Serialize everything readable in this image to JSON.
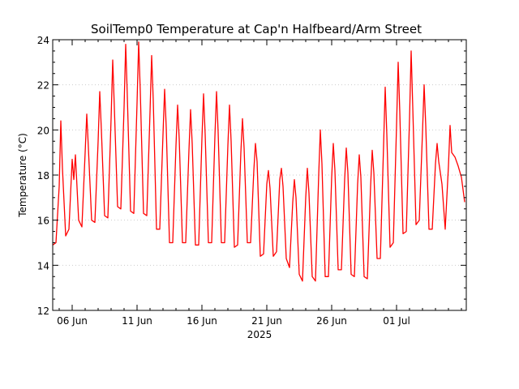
{
  "chart_data": {
    "type": "line",
    "title": "SoilTemp0 Temperature at Cap'n Halfbeard/Arm Street",
    "ylabel": "Temperature (°C)",
    "xlabel": "2025",
    "x_tick_labels": [
      "06 Jun",
      "11 Jun",
      "16 Jun",
      "21 Jun",
      "26 Jun",
      "01 Jul"
    ],
    "x_tick_dates": [
      "2025-06-06",
      "2025-06-11",
      "2025-06-16",
      "2025-06-21",
      "2025-06-26",
      "2025-07-01"
    ],
    "xlim": [
      "2025-06-04T12:00",
      "2025-07-06T09:00"
    ],
    "ylim": [
      12,
      24
    ],
    "y_ticks": [
      12,
      14,
      16,
      18,
      20,
      22,
      24
    ],
    "grid": "horizontal dotted",
    "series": [
      {
        "color": "#ff0000",
        "points": [
          [
            "2025-06-04T12:00",
            14.9
          ],
          [
            "2025-06-04T18:00",
            15.0
          ],
          [
            "2025-06-05T00:00",
            17.5
          ],
          [
            "2025-06-05T03:00",
            20.4
          ],
          [
            "2025-06-05T06:00",
            18.3
          ],
          [
            "2025-06-05T12:00",
            15.3
          ],
          [
            "2025-06-05T18:00",
            15.6
          ],
          [
            "2025-06-06T00:00",
            18.7
          ],
          [
            "2025-06-06T03:00",
            17.8
          ],
          [
            "2025-06-06T06:00",
            18.9
          ],
          [
            "2025-06-06T12:00",
            16.0
          ],
          [
            "2025-06-06T18:00",
            15.7
          ],
          [
            "2025-06-07T00:00",
            19.0
          ],
          [
            "2025-06-07T03:00",
            20.7
          ],
          [
            "2025-06-07T06:00",
            19.2
          ],
          [
            "2025-06-07T12:00",
            16.0
          ],
          [
            "2025-06-07T18:00",
            15.9
          ],
          [
            "2025-06-08T00:00",
            19.5
          ],
          [
            "2025-06-08T03:00",
            21.7
          ],
          [
            "2025-06-08T06:00",
            20.0
          ],
          [
            "2025-06-08T12:00",
            16.2
          ],
          [
            "2025-06-08T18:00",
            16.1
          ],
          [
            "2025-06-09T00:00",
            20.5
          ],
          [
            "2025-06-09T03:00",
            23.1
          ],
          [
            "2025-06-09T06:00",
            21.0
          ],
          [
            "2025-06-09T12:00",
            16.6
          ],
          [
            "2025-06-09T18:00",
            16.5
          ],
          [
            "2025-06-10T00:00",
            21.0
          ],
          [
            "2025-06-10T03:00",
            23.8
          ],
          [
            "2025-06-10T06:00",
            21.5
          ],
          [
            "2025-06-10T12:00",
            16.4
          ],
          [
            "2025-06-10T18:00",
            16.3
          ],
          [
            "2025-06-11T00:00",
            21.2
          ],
          [
            "2025-06-11T03:00",
            23.9
          ],
          [
            "2025-06-11T06:00",
            21.7
          ],
          [
            "2025-06-11T12:00",
            16.3
          ],
          [
            "2025-06-11T18:00",
            16.2
          ],
          [
            "2025-06-12T00:00",
            20.8
          ],
          [
            "2025-06-12T03:00",
            23.3
          ],
          [
            "2025-06-12T06:00",
            21.3
          ],
          [
            "2025-06-12T12:00",
            15.6
          ],
          [
            "2025-06-12T18:00",
            15.6
          ],
          [
            "2025-06-13T00:00",
            19.8
          ],
          [
            "2025-06-13T03:00",
            21.8
          ],
          [
            "2025-06-13T06:00",
            20.1
          ],
          [
            "2025-06-13T12:00",
            15.0
          ],
          [
            "2025-06-13T18:00",
            15.0
          ],
          [
            "2025-06-14T00:00",
            19.3
          ],
          [
            "2025-06-14T03:00",
            21.1
          ],
          [
            "2025-06-14T06:00",
            19.6
          ],
          [
            "2025-06-14T12:00",
            15.0
          ],
          [
            "2025-06-14T18:00",
            15.0
          ],
          [
            "2025-06-15T00:00",
            19.1
          ],
          [
            "2025-06-15T03:00",
            20.9
          ],
          [
            "2025-06-15T06:00",
            19.4
          ],
          [
            "2025-06-15T12:00",
            14.9
          ],
          [
            "2025-06-15T18:00",
            14.9
          ],
          [
            "2025-06-16T00:00",
            19.6
          ],
          [
            "2025-06-16T03:00",
            21.6
          ],
          [
            "2025-06-16T06:00",
            19.8
          ],
          [
            "2025-06-16T12:00",
            15.0
          ],
          [
            "2025-06-16T18:00",
            15.0
          ],
          [
            "2025-06-17T00:00",
            19.7
          ],
          [
            "2025-06-17T03:00",
            21.7
          ],
          [
            "2025-06-17T06:00",
            19.9
          ],
          [
            "2025-06-17T12:00",
            15.0
          ],
          [
            "2025-06-17T18:00",
            15.0
          ],
          [
            "2025-06-18T00:00",
            19.3
          ],
          [
            "2025-06-18T03:00",
            21.1
          ],
          [
            "2025-06-18T06:00",
            19.5
          ],
          [
            "2025-06-18T12:00",
            14.8
          ],
          [
            "2025-06-18T18:00",
            14.9
          ],
          [
            "2025-06-19T00:00",
            19.0
          ],
          [
            "2025-06-19T03:00",
            20.5
          ],
          [
            "2025-06-19T06:00",
            19.2
          ],
          [
            "2025-06-19T12:00",
            15.0
          ],
          [
            "2025-06-19T18:00",
            15.0
          ],
          [
            "2025-06-20T00:00",
            18.2
          ],
          [
            "2025-06-20T03:00",
            19.4
          ],
          [
            "2025-06-20T06:00",
            18.6
          ],
          [
            "2025-06-20T12:00",
            14.4
          ],
          [
            "2025-06-20T18:00",
            14.5
          ],
          [
            "2025-06-21T00:00",
            17.6
          ],
          [
            "2025-06-21T03:00",
            18.2
          ],
          [
            "2025-06-21T06:00",
            17.4
          ],
          [
            "2025-06-21T12:00",
            14.4
          ],
          [
            "2025-06-21T18:00",
            14.6
          ],
          [
            "2025-06-22T00:00",
            17.8
          ],
          [
            "2025-06-22T03:00",
            18.3
          ],
          [
            "2025-06-22T06:00",
            17.5
          ],
          [
            "2025-06-22T12:00",
            14.3
          ],
          [
            "2025-06-22T18:00",
            13.9
          ],
          [
            "2025-06-23T00:00",
            16.8
          ],
          [
            "2025-06-23T03:00",
            17.8
          ],
          [
            "2025-06-23T06:00",
            17.0
          ],
          [
            "2025-06-23T12:00",
            13.6
          ],
          [
            "2025-06-23T18:00",
            13.3
          ],
          [
            "2025-06-24T00:00",
            17.0
          ],
          [
            "2025-06-24T03:00",
            18.3
          ],
          [
            "2025-06-24T06:00",
            17.2
          ],
          [
            "2025-06-24T12:00",
            13.5
          ],
          [
            "2025-06-24T18:00",
            13.3
          ],
          [
            "2025-06-25T00:00",
            18.0
          ],
          [
            "2025-06-25T03:00",
            20.0
          ],
          [
            "2025-06-25T06:00",
            18.5
          ],
          [
            "2025-06-25T12:00",
            13.5
          ],
          [
            "2025-06-25T18:00",
            13.5
          ],
          [
            "2025-06-26T00:00",
            17.9
          ],
          [
            "2025-06-26T03:00",
            19.4
          ],
          [
            "2025-06-26T06:00",
            18.2
          ],
          [
            "2025-06-26T12:00",
            13.8
          ],
          [
            "2025-06-26T18:00",
            13.8
          ],
          [
            "2025-06-27T00:00",
            17.8
          ],
          [
            "2025-06-27T03:00",
            19.2
          ],
          [
            "2025-06-27T06:00",
            18.1
          ],
          [
            "2025-06-27T12:00",
            13.6
          ],
          [
            "2025-06-27T18:00",
            13.5
          ],
          [
            "2025-06-28T00:00",
            17.6
          ],
          [
            "2025-06-28T03:00",
            18.9
          ],
          [
            "2025-06-28T06:00",
            17.9
          ],
          [
            "2025-06-28T12:00",
            13.5
          ],
          [
            "2025-06-28T18:00",
            13.4
          ],
          [
            "2025-06-29T00:00",
            17.5
          ],
          [
            "2025-06-29T03:00",
            19.1
          ],
          [
            "2025-06-29T06:00",
            18.1
          ],
          [
            "2025-06-29T12:00",
            14.3
          ],
          [
            "2025-06-29T18:00",
            14.3
          ],
          [
            "2025-06-30T00:00",
            19.3
          ],
          [
            "2025-06-30T03:00",
            21.9
          ],
          [
            "2025-06-30T06:00",
            19.8
          ],
          [
            "2025-06-30T12:00",
            14.8
          ],
          [
            "2025-06-30T18:00",
            15.0
          ],
          [
            "2025-07-01T00:00",
            20.2
          ],
          [
            "2025-07-01T03:00",
            23.0
          ],
          [
            "2025-07-01T06:00",
            20.8
          ],
          [
            "2025-07-01T12:00",
            15.4
          ],
          [
            "2025-07-01T18:00",
            15.5
          ],
          [
            "2025-07-02T00:00",
            20.5
          ],
          [
            "2025-07-02T03:00",
            23.5
          ],
          [
            "2025-07-02T06:00",
            21.0
          ],
          [
            "2025-07-02T12:00",
            15.8
          ],
          [
            "2025-07-02T18:00",
            16.0
          ],
          [
            "2025-07-03T00:00",
            19.9
          ],
          [
            "2025-07-03T03:00",
            22.0
          ],
          [
            "2025-07-03T06:00",
            20.2
          ],
          [
            "2025-07-03T12:00",
            15.6
          ],
          [
            "2025-07-03T18:00",
            15.6
          ],
          [
            "2025-07-04T00:00",
            18.5
          ],
          [
            "2025-07-04T03:00",
            19.4
          ],
          [
            "2025-07-04T06:00",
            18.6
          ],
          [
            "2025-07-04T12:00",
            17.6
          ],
          [
            "2025-07-04T18:00",
            15.6
          ],
          [
            "2025-07-05T00:00",
            18.4
          ],
          [
            "2025-07-05T03:00",
            20.2
          ],
          [
            "2025-07-05T06:00",
            19.0
          ],
          [
            "2025-07-05T12:00",
            18.8
          ],
          [
            "2025-07-05T18:00",
            18.4
          ],
          [
            "2025-07-06T00:00",
            17.9
          ],
          [
            "2025-07-06T06:00",
            16.8
          ]
        ]
      }
    ]
  }
}
